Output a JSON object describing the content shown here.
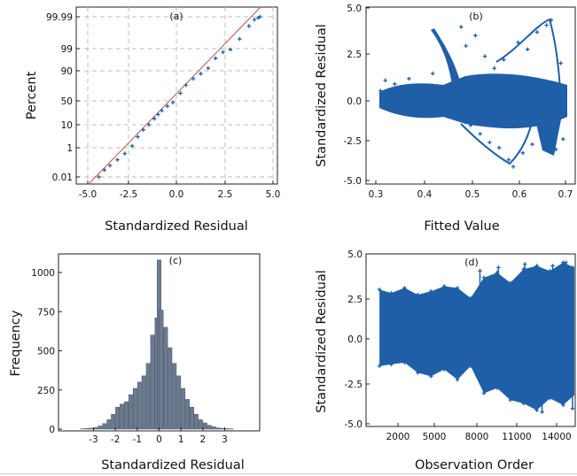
{
  "chart_data": [
    {
      "panel": "a",
      "type": "scatter",
      "title": "(a)",
      "xlabel": "Standardized Residual",
      "ylabel": "Percent",
      "xlim": [
        -5.0,
        5.0
      ],
      "ylim": [
        "0.01",
        "99.99"
      ],
      "yscale": "normal-probability",
      "grid": true,
      "xticks": [
        "-5.0",
        "-2.5",
        "0.0",
        "2.5",
        "5.0"
      ],
      "yticks": [
        "0.01",
        "1",
        "10",
        "50",
        "90",
        "99",
        "99.99"
      ],
      "marker_color": "#1f5fa8",
      "reference_line_color": "#c0504d",
      "points": [
        [
          -4.4,
          0.01
        ],
        [
          -4.1,
          0.03
        ],
        [
          -3.8,
          0.06
        ],
        [
          -3.4,
          0.15
        ],
        [
          -3.0,
          0.4
        ],
        [
          -2.6,
          1.2
        ],
        [
          -2.3,
          3
        ],
        [
          -2.0,
          6
        ],
        [
          -1.7,
          10
        ],
        [
          -1.4,
          15
        ],
        [
          -1.2,
          20
        ],
        [
          -1.0,
          26
        ],
        [
          -0.7,
          35
        ],
        [
          -0.4,
          45
        ],
        [
          0.0,
          58
        ],
        [
          0.3,
          68
        ],
        [
          0.7,
          77
        ],
        [
          1.1,
          85
        ],
        [
          1.5,
          91
        ],
        [
          1.9,
          95
        ],
        [
          2.3,
          97.5
        ],
        [
          2.7,
          98.6
        ],
        [
          3.2,
          99.3
        ],
        [
          3.7,
          99.7
        ],
        [
          4.0,
          99.9
        ],
        [
          4.2,
          99.96
        ],
        [
          4.3,
          99.99
        ]
      ]
    },
    {
      "panel": "b",
      "type": "scatter",
      "title": "(b)",
      "xlabel": "Fitted Value",
      "ylabel": "Standardized Residual",
      "xlim": [
        0.3,
        0.7
      ],
      "ylim": [
        -5.0,
        5.0
      ],
      "xticks": [
        "0.3",
        "0.4",
        "0.5",
        "0.6",
        "0.7"
      ],
      "yticks": [
        "-5.0",
        "-2.5",
        "0.0",
        "2.5",
        "5.0"
      ],
      "marker_color": "#1f5fa8",
      "points": [
        [
          0.31,
          0.2
        ],
        [
          0.32,
          0.8
        ],
        [
          0.33,
          -0.3
        ],
        [
          0.34,
          0.6
        ],
        [
          0.35,
          0.1
        ],
        [
          0.37,
          0.9
        ],
        [
          0.38,
          -0.4
        ],
        [
          0.4,
          0.5
        ],
        [
          0.42,
          1.2
        ],
        [
          0.43,
          -0.8
        ],
        [
          0.45,
          0.3
        ],
        [
          0.46,
          1.6
        ],
        [
          0.47,
          -1.0
        ],
        [
          0.48,
          3.9
        ],
        [
          0.49,
          2.8
        ],
        [
          0.5,
          -1.8
        ],
        [
          0.51,
          3.4
        ],
        [
          0.52,
          -2.3
        ],
        [
          0.53,
          2.2
        ],
        [
          0.54,
          -2.8
        ],
        [
          0.55,
          1.5
        ],
        [
          0.56,
          -3.1
        ],
        [
          0.57,
          2.0
        ],
        [
          0.58,
          -3.8
        ],
        [
          0.59,
          -4.2
        ],
        [
          0.6,
          3.0
        ],
        [
          0.61,
          -3.4
        ],
        [
          0.62,
          2.6
        ],
        [
          0.63,
          -2.9
        ],
        [
          0.64,
          3.6
        ],
        [
          0.65,
          -2.2
        ],
        [
          0.66,
          4.0
        ],
        [
          0.67,
          4.3
        ],
        [
          0.68,
          -3.2
        ],
        [
          0.69,
          1.8
        ],
        [
          0.695,
          -2.6
        ]
      ]
    },
    {
      "panel": "c",
      "type": "bar",
      "title": "(c)",
      "xlabel": "Standardized Residual",
      "ylabel": "Frequency",
      "xlim": [
        -4.6,
        4.6
      ],
      "ylim": [
        0,
        1100
      ],
      "xticks": [
        "-3",
        "-2",
        "-1",
        "0",
        "1",
        "2",
        "3"
      ],
      "yticks": [
        "0",
        "250",
        "500",
        "750",
        "1000"
      ],
      "bar_color": "#6b7a8f",
      "bins": [
        [
          -3.5,
          2
        ],
        [
          -3.3,
          4
        ],
        [
          -3.1,
          6
        ],
        [
          -2.9,
          10
        ],
        [
          -2.7,
          20
        ],
        [
          -2.5,
          35
        ],
        [
          -2.3,
          60
        ],
        [
          -2.1,
          95
        ],
        [
          -1.9,
          140
        ],
        [
          -1.7,
          160
        ],
        [
          -1.5,
          175
        ],
        [
          -1.3,
          220
        ],
        [
          -1.1,
          260
        ],
        [
          -0.9,
          300
        ],
        [
          -0.7,
          340
        ],
        [
          -0.5,
          420
        ],
        [
          -0.3,
          600
        ],
        [
          -0.1,
          710
        ],
        [
          0.0,
          1080
        ],
        [
          0.1,
          760
        ],
        [
          0.3,
          650
        ],
        [
          0.5,
          520
        ],
        [
          0.7,
          420
        ],
        [
          0.9,
          340
        ],
        [
          1.1,
          260
        ],
        [
          1.3,
          190
        ],
        [
          1.5,
          140
        ],
        [
          1.7,
          95
        ],
        [
          1.9,
          60
        ],
        [
          2.1,
          40
        ],
        [
          2.3,
          25
        ],
        [
          2.5,
          15
        ],
        [
          2.7,
          8
        ],
        [
          2.9,
          5
        ],
        [
          3.1,
          3
        ],
        [
          3.3,
          2
        ]
      ]
    },
    {
      "panel": "d",
      "type": "scatter",
      "title": "(d)",
      "xlabel": "Observation Order",
      "ylabel": "Standardized Residual",
      "xlim": [
        0,
        16000
      ],
      "ylim": [
        -5.0,
        5.0
      ],
      "xticks": [
        "2000",
        "5000",
        "8000",
        "11000",
        "14000"
      ],
      "yticks": [
        "-5.0",
        "-2.5",
        "0.0",
        "2.5",
        "5.0"
      ],
      "marker_color": "#1f5fa8",
      "envelope": [
        [
          600,
          2.9,
          -1.6
        ],
        [
          1500,
          2.7,
          -1.5
        ],
        [
          2500,
          3.0,
          -1.4
        ],
        [
          3500,
          2.6,
          -2.0
        ],
        [
          4500,
          2.8,
          -2.2
        ],
        [
          5500,
          3.1,
          -1.8
        ],
        [
          6500,
          3.0,
          -2.4
        ],
        [
          7500,
          2.4,
          -1.6
        ],
        [
          8500,
          3.6,
          -3.2
        ],
        [
          9500,
          3.9,
          -2.9
        ],
        [
          10500,
          3.3,
          -3.6
        ],
        [
          11500,
          4.1,
          -3.8
        ],
        [
          12500,
          4.3,
          -4.2
        ],
        [
          13500,
          4.0,
          -3.5
        ],
        [
          14500,
          4.5,
          -3.9
        ],
        [
          15500,
          4.2,
          -3.3
        ]
      ],
      "spikes": [
        [
          8200,
          4.0
        ],
        [
          9600,
          4.2
        ],
        [
          11600,
          4.4
        ],
        [
          12900,
          -4.3
        ],
        [
          13700,
          4.3
        ],
        [
          14700,
          4.5
        ],
        [
          15200,
          -4.1
        ]
      ]
    }
  ]
}
